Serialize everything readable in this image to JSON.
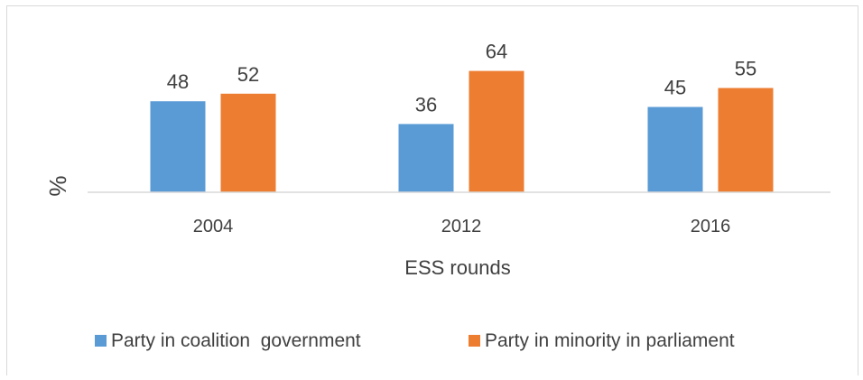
{
  "chart_data": {
    "type": "bar",
    "categories": [
      "2004",
      "2012",
      "2016"
    ],
    "series": [
      {
        "name": "Party in coalition  government",
        "values": [
          48,
          36,
          45
        ],
        "color": "#5b9bd5"
      },
      {
        "name": "Party in minority in parliament",
        "values": [
          52,
          64,
          55
        ],
        "color": "#ed7d31"
      }
    ],
    "xlabel": "ESS rounds",
    "ylabel": "%",
    "ylim": [
      0,
      100
    ],
    "grid": false,
    "legend_position": "bottom"
  }
}
